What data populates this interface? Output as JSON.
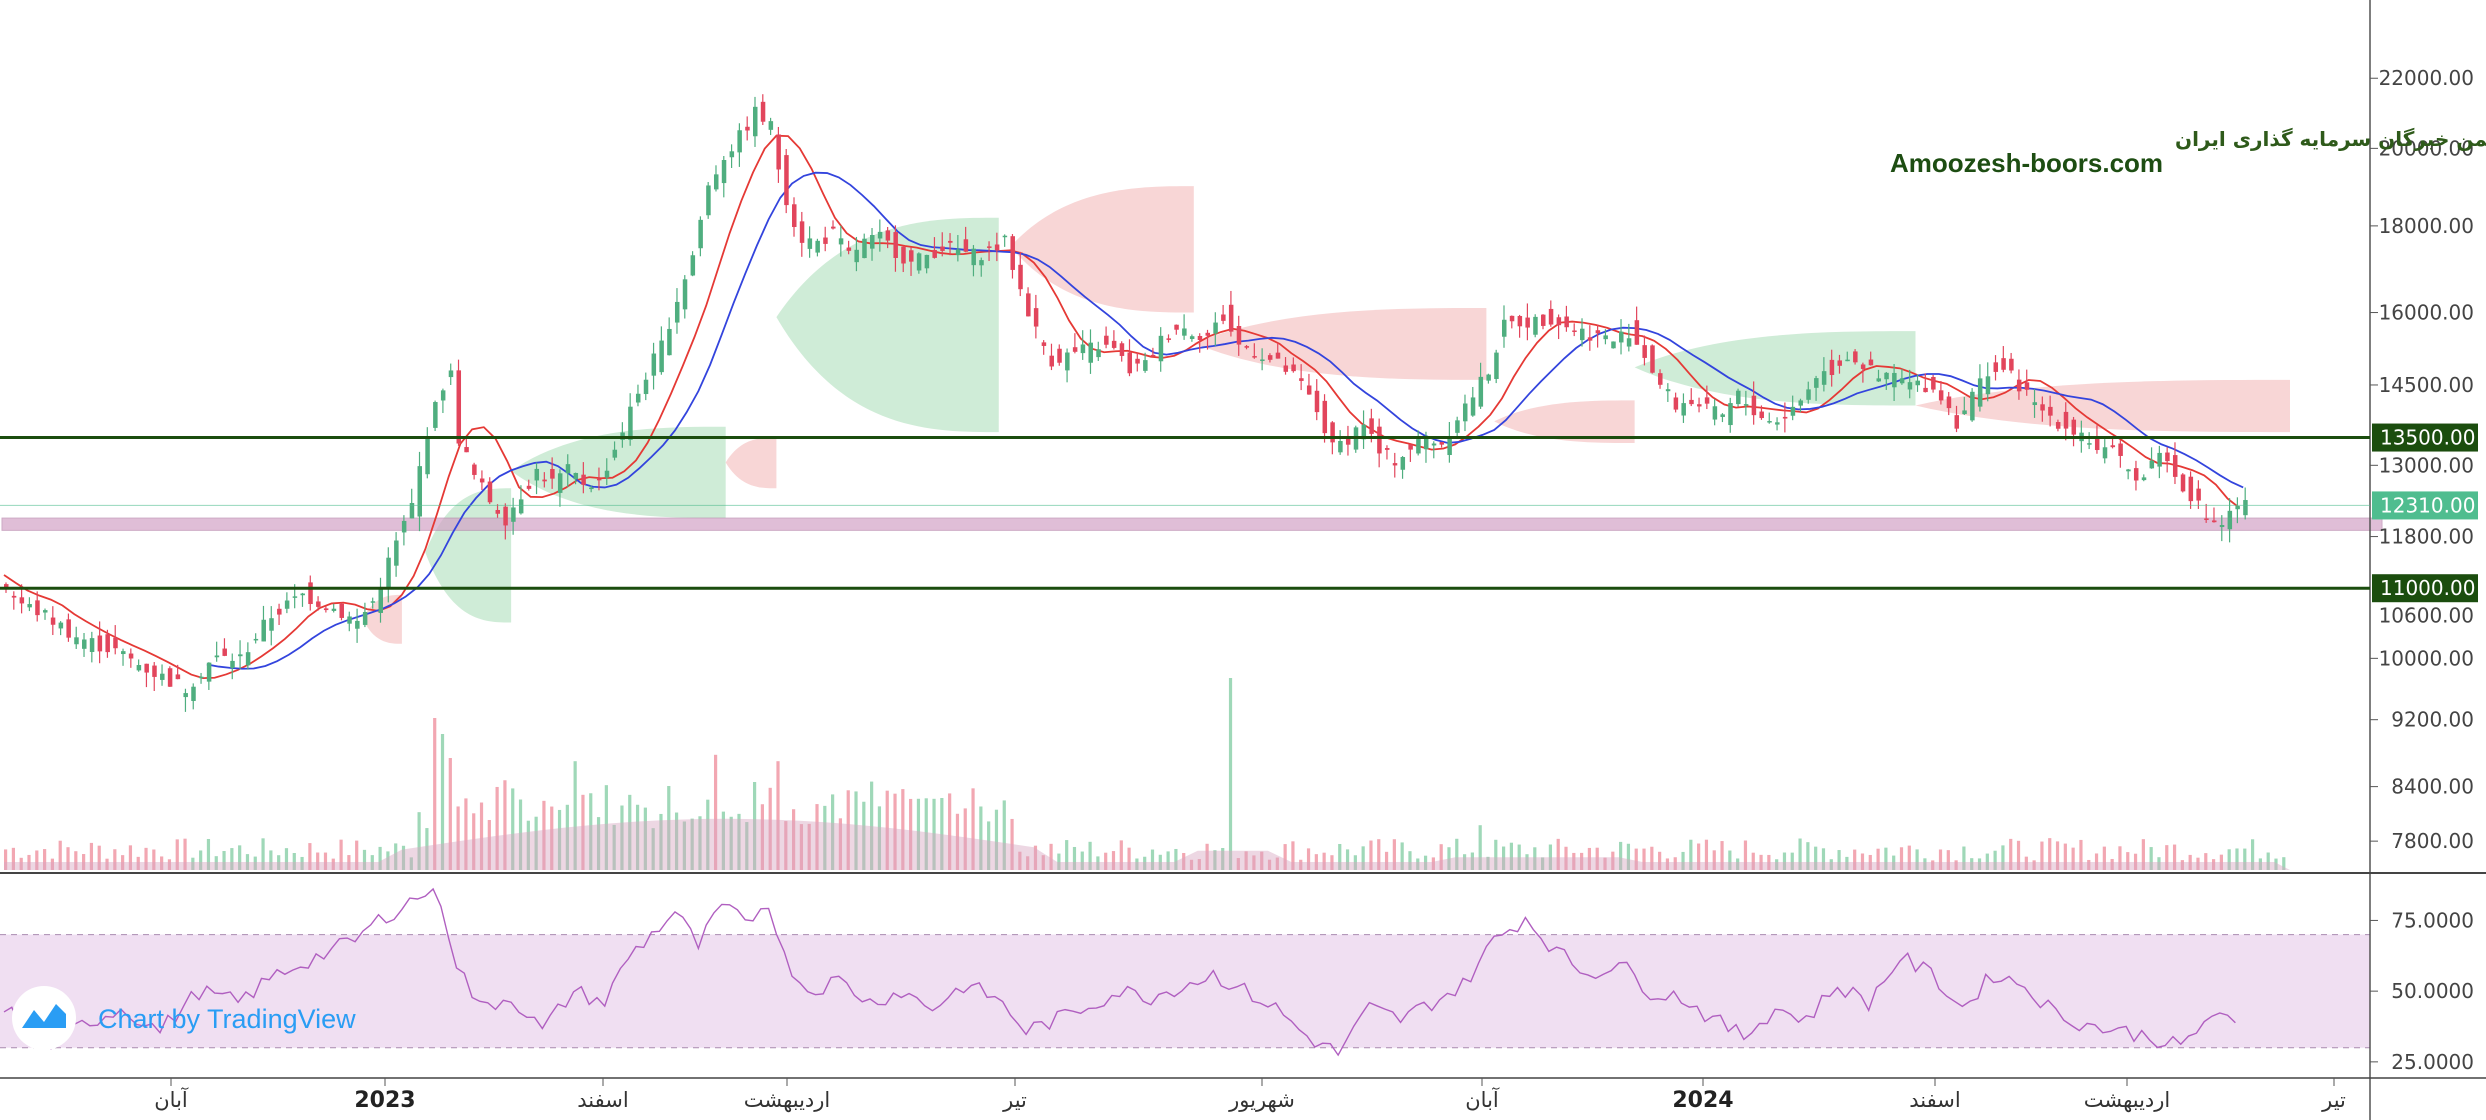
{
  "chart_data": {
    "type": "candlestick",
    "title": "",
    "watermark": {
      "persian": "انجمن خبرگان سرمایه گذاری ایران",
      "english": "Amoozesh-boors.com"
    },
    "branding": "Chart by TradingView",
    "price_axis": {
      "ticks": [
        "22000.00",
        "20000.00",
        "18000.00",
        "16000.00",
        "14500.00",
        "13000.00",
        "11800.00",
        "10000.00",
        "9200.00",
        "8400.00",
        "7800.00"
      ],
      "hidden_tick": "10600.00",
      "scale": "log",
      "range": [
        7500,
        23300
      ]
    },
    "rsi_axis": {
      "ticks": [
        "75.0000",
        "50.0000",
        "25.0000"
      ],
      "range": [
        20,
        90
      ],
      "band": [
        30,
        70
      ]
    },
    "time_axis": {
      "labels": [
        {
          "text": "آبان",
          "bold": false
        },
        {
          "text": "2023",
          "bold": true
        },
        {
          "text": "اسفند",
          "bold": false
        },
        {
          "text": "اردیبهشت",
          "bold": false
        },
        {
          "text": "تیر",
          "bold": false
        },
        {
          "text": "شهریور",
          "bold": false
        },
        {
          "text": "آبان",
          "bold": false
        },
        {
          "text": "2024",
          "bold": true
        },
        {
          "text": "اسفند",
          "bold": false
        },
        {
          "text": "اردیبهشت",
          "bold": false
        },
        {
          "text": "تیر",
          "bold": false
        }
      ]
    },
    "levels": [
      {
        "value": 13500,
        "label": "13500.00",
        "color": "#1b4d0e"
      },
      {
        "value": 11000,
        "label": "11000.00",
        "color": "#1b4d0e"
      }
    ],
    "last_price": {
      "value": 12310,
      "label": "12310.00",
      "color": "#4fbd8f"
    },
    "support_zone": [
      11900,
      12100
    ],
    "price_path": [
      [
        0,
        11200
      ],
      [
        5,
        10800
      ],
      [
        12,
        10600
      ],
      [
        20,
        10300
      ],
      [
        30,
        10100
      ],
      [
        40,
        9800
      ],
      [
        48,
        9600
      ],
      [
        55,
        10000
      ],
      [
        62,
        10000
      ],
      [
        70,
        10600
      ],
      [
        78,
        10900
      ],
      [
        86,
        10700
      ],
      [
        92,
        10500
      ],
      [
        96,
        10800
      ],
      [
        100,
        11400
      ],
      [
        106,
        12300
      ],
      [
        110,
        13600
      ],
      [
        114,
        14500
      ],
      [
        116,
        14700
      ],
      [
        118,
        13500
      ],
      [
        122,
        12800
      ],
      [
        126,
        12400
      ],
      [
        130,
        12100
      ],
      [
        134,
        12500
      ],
      [
        138,
        12900
      ],
      [
        142,
        12700
      ],
      [
        146,
        12900
      ],
      [
        150,
        12700
      ],
      [
        154,
        12700
      ],
      [
        158,
        13300
      ],
      [
        162,
        14000
      ],
      [
        166,
        14700
      ],
      [
        170,
        15300
      ],
      [
        174,
        16300
      ],
      [
        178,
        17300
      ],
      [
        182,
        19000
      ],
      [
        186,
        19800
      ],
      [
        190,
        20300
      ],
      [
        194,
        21000
      ],
      [
        198,
        20600
      ],
      [
        200,
        19500
      ],
      [
        203,
        18300
      ],
      [
        206,
        17700
      ],
      [
        210,
        17600
      ],
      [
        214,
        17800
      ],
      [
        218,
        17300
      ],
      [
        222,
        17600
      ],
      [
        226,
        17700
      ],
      [
        230,
        17400
      ],
      [
        234,
        17100
      ],
      [
        238,
        17300
      ],
      [
        242,
        17500
      ],
      [
        246,
        17400
      ],
      [
        250,
        17300
      ],
      [
        254,
        17400
      ],
      [
        258,
        17600
      ],
      [
        262,
        16500
      ],
      [
        266,
        15600
      ],
      [
        270,
        15000
      ],
      [
        274,
        15100
      ],
      [
        278,
        15200
      ],
      [
        282,
        15300
      ],
      [
        286,
        15200
      ],
      [
        290,
        14800
      ],
      [
        294,
        14900
      ],
      [
        298,
        15400
      ],
      [
        302,
        15700
      ],
      [
        306,
        15600
      ],
      [
        310,
        15500
      ],
      [
        314,
        15900
      ],
      [
        318,
        15300
      ],
      [
        322,
        15200
      ],
      [
        326,
        15000
      ],
      [
        330,
        14800
      ],
      [
        334,
        14500
      ],
      [
        338,
        14000
      ],
      [
        342,
        13300
      ],
      [
        346,
        13500
      ],
      [
        350,
        13800
      ],
      [
        354,
        13200
      ],
      [
        358,
        13100
      ],
      [
        362,
        13300
      ],
      [
        366,
        13500
      ],
      [
        370,
        13400
      ],
      [
        374,
        13900
      ],
      [
        378,
        14300
      ],
      [
        382,
        14800
      ],
      [
        386,
        15700
      ],
      [
        390,
        15800
      ],
      [
        394,
        15800
      ],
      [
        398,
        15900
      ],
      [
        402,
        15700
      ],
      [
        406,
        15600
      ],
      [
        410,
        15500
      ],
      [
        414,
        15400
      ],
      [
        418,
        15600
      ],
      [
        422,
        15100
      ],
      [
        426,
        14500
      ],
      [
        430,
        14100
      ],
      [
        434,
        14200
      ],
      [
        438,
        14000
      ],
      [
        442,
        13900
      ],
      [
        446,
        14300
      ],
      [
        450,
        14000
      ],
      [
        454,
        13800
      ],
      [
        458,
        13900
      ],
      [
        462,
        14200
      ],
      [
        466,
        14700
      ],
      [
        470,
        14800
      ],
      [
        474,
        15100
      ],
      [
        478,
        14900
      ],
      [
        482,
        14600
      ],
      [
        486,
        14700
      ],
      [
        490,
        14500
      ],
      [
        494,
        14500
      ],
      [
        498,
        14300
      ],
      [
        502,
        13800
      ],
      [
        506,
        14300
      ],
      [
        510,
        14800
      ],
      [
        514,
        14800
      ],
      [
        518,
        14500
      ],
      [
        522,
        14100
      ],
      [
        526,
        13900
      ],
      [
        530,
        13700
      ],
      [
        534,
        13600
      ],
      [
        538,
        13300
      ],
      [
        542,
        13200
      ],
      [
        546,
        12900
      ],
      [
        550,
        12800
      ],
      [
        554,
        13300
      ],
      [
        558,
        12800
      ],
      [
        562,
        12500
      ],
      [
        566,
        12100
      ],
      [
        570,
        12000
      ],
      [
        574,
        12310
      ]
    ],
    "ichimoku_cloud": [
      {
        "from": 92,
        "to": 102,
        "top": 10900,
        "bottom": 10200,
        "color": "#f6c8c8"
      },
      {
        "from": 108,
        "to": 130,
        "top": 12600,
        "bottom": 10500,
        "color": "#bfe5c9"
      },
      {
        "from": 130,
        "to": 185,
        "top": 13700,
        "bottom": 12100,
        "color": "#bfe5c9"
      },
      {
        "from": 185,
        "to": 198,
        "top": 13500,
        "bottom": 12600,
        "color": "#f6c8c8"
      },
      {
        "from": 198,
        "to": 255,
        "top": 18200,
        "bottom": 13600,
        "color": "#bfe5c9"
      },
      {
        "from": 258,
        "to": 305,
        "top": 19000,
        "bottom": 16000,
        "color": "#f6c8c8"
      },
      {
        "from": 305,
        "to": 380,
        "top": 16100,
        "bottom": 14600,
        "color": "#f6c8c8"
      },
      {
        "from": 382,
        "to": 418,
        "top": 14200,
        "bottom": 13400,
        "color": "#f6c8c8"
      },
      {
        "from": 418,
        "to": 490,
        "top": 15600,
        "bottom": 14100,
        "color": "#bfe5c9"
      },
      {
        "from": 490,
        "to": 586,
        "top": 14600,
        "bottom": 13600,
        "color": "#f6c8c8"
      }
    ],
    "volume_spikes": [
      {
        "i": 110,
        "v": 0.95,
        "up": false
      },
      {
        "i": 112,
        "v": 0.85,
        "up": true
      },
      {
        "i": 114,
        "v": 0.7,
        "up": false
      },
      {
        "i": 147,
        "v": 0.68,
        "up": true
      },
      {
        "i": 182,
        "v": 0.72,
        "up": false
      },
      {
        "i": 193,
        "v": 0.55,
        "up": true
      },
      {
        "i": 198,
        "v": 0.68,
        "up": false
      },
      {
        "i": 314,
        "v": 1.2,
        "up": true
      },
      {
        "i": 378,
        "v": 0.28,
        "up": true
      }
    ],
    "rsi_path": [
      [
        0,
        45
      ],
      [
        10,
        30
      ],
      [
        20,
        38
      ],
      [
        30,
        44
      ],
      [
        40,
        36
      ],
      [
        50,
        50
      ],
      [
        60,
        46
      ],
      [
        70,
        56
      ],
      [
        80,
        62
      ],
      [
        90,
        68
      ],
      [
        96,
        75
      ],
      [
        102,
        80
      ],
      [
        108,
        85
      ],
      [
        112,
        82
      ],
      [
        116,
        60
      ],
      [
        122,
        44
      ],
      [
        130,
        48
      ],
      [
        138,
        36
      ],
      [
        146,
        50
      ],
      [
        154,
        46
      ],
      [
        160,
        62
      ],
      [
        166,
        70
      ],
      [
        172,
        78
      ],
      [
        178,
        66
      ],
      [
        184,
        80
      ],
      [
        190,
        74
      ],
      [
        196,
        82
      ],
      [
        200,
        62
      ],
      [
        206,
        50
      ],
      [
        214,
        54
      ],
      [
        222,
        46
      ],
      [
        230,
        50
      ],
      [
        238,
        44
      ],
      [
        246,
        52
      ],
      [
        254,
        48
      ],
      [
        262,
        36
      ],
      [
        270,
        40
      ],
      [
        278,
        45
      ],
      [
        286,
        50
      ],
      [
        294,
        48
      ],
      [
        302,
        52
      ],
      [
        310,
        56
      ],
      [
        318,
        50
      ],
      [
        326,
        44
      ],
      [
        334,
        34
      ],
      [
        342,
        28
      ],
      [
        350,
        44
      ],
      [
        358,
        40
      ],
      [
        366,
        46
      ],
      [
        374,
        52
      ],
      [
        382,
        68
      ],
      [
        390,
        76
      ],
      [
        398,
        64
      ],
      [
        406,
        56
      ],
      [
        414,
        60
      ],
      [
        422,
        50
      ],
      [
        430,
        48
      ],
      [
        438,
        40
      ],
      [
        446,
        34
      ],
      [
        454,
        44
      ],
      [
        462,
        40
      ],
      [
        470,
        52
      ],
      [
        478,
        46
      ],
      [
        486,
        62
      ],
      [
        494,
        56
      ],
      [
        502,
        44
      ],
      [
        510,
        56
      ],
      [
        518,
        52
      ],
      [
        526,
        42
      ],
      [
        534,
        38
      ],
      [
        542,
        36
      ],
      [
        550,
        34
      ],
      [
        558,
        30
      ],
      [
        566,
        42
      ],
      [
        574,
        36
      ]
    ]
  }
}
